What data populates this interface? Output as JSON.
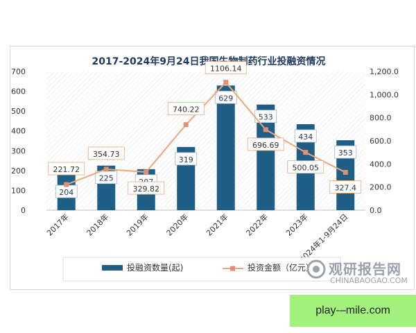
{
  "chart_data": {
    "type": "bar",
    "title": "2017-2024年9月24日我国生物制药行业投融资情况",
    "categories": [
      "2017年",
      "2018年",
      "2019年",
      "2020年",
      "2021年",
      "2022年",
      "2023年",
      "2024年1-9月24日"
    ],
    "series": [
      {
        "name": "投融资数量(起)",
        "type": "bar",
        "axis": "left",
        "color": "#1f5f86",
        "values": [
          204,
          225,
          207,
          319,
          629,
          533,
          434,
          353
        ],
        "labels": [
          "204",
          "225",
          "207",
          "319",
          "629",
          "533",
          "434",
          "353"
        ]
      },
      {
        "name": "投资金额（亿元）",
        "type": "line",
        "axis": "right",
        "color": "#f0a67a",
        "values": [
          221.72,
          354.73,
          329.82,
          740.22,
          1106.14,
          696.69,
          500.05,
          327.4
        ],
        "labels": [
          "221.72",
          "354.73",
          "329.82",
          "740.22",
          "1106.14",
          "696.69",
          "500.05",
          "327.4"
        ]
      }
    ],
    "y_left": {
      "min": 0,
      "max": 700,
      "ticks": [
        "0",
        "100",
        "200",
        "300",
        "400",
        "500",
        "600",
        "700"
      ]
    },
    "y_right": {
      "min": 0,
      "max": 1200,
      "ticks": [
        "0.0",
        "200.0",
        "400.0",
        "600.0",
        "800.0",
        "1,000.0",
        "1,200.0"
      ]
    },
    "grid": false,
    "legend": "bottom"
  },
  "watermark": {
    "title": "观研报告网",
    "domain": "CHINABAOGAO.COM"
  },
  "banner": {
    "text": "play-–mile.com"
  }
}
